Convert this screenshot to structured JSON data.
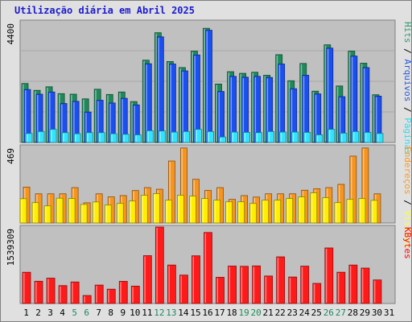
{
  "chart_data": {
    "type": "bar",
    "title": "Utilização diária em Abril 2025",
    "categories": [
      "1",
      "2",
      "3",
      "4",
      "5",
      "6",
      "7",
      "8",
      "9",
      "10",
      "11",
      "12",
      "13",
      "14",
      "15",
      "16",
      "17",
      "18",
      "19",
      "20",
      "21",
      "22",
      "23",
      "24",
      "25",
      "26",
      "27",
      "28",
      "29",
      "30",
      "31"
    ],
    "weekend_categories": [
      "5",
      "6",
      "12",
      "13",
      "19",
      "20",
      "26",
      "27"
    ],
    "panels": [
      {
        "name": "traffic",
        "ymax_label": "4400",
        "ylim": [
          0,
          4400
        ],
        "right_labels": [
          "Páginas",
          "Arquivos",
          "Hits"
        ],
        "right_colors": [
          "#33d9ef",
          "#2a59d9",
          "#2f9a6d"
        ],
        "series": [
          {
            "name": "Hits",
            "color": "#1e8a5c",
            "values": [
              2150,
              1900,
              2030,
              1780,
              1760,
              1590,
              1940,
              1750,
              1840,
              1490,
              3000,
              4000,
              2950,
              2730,
              3330,
              4160,
              2130,
              2580,
              2520,
              2560,
              2450,
              3200,
              2250,
              2880,
              1870,
              3560,
              2060,
              3330,
              2890,
              1740,
              0
            ]
          },
          {
            "name": "Arquivos",
            "color": "#1a4ff0",
            "values": [
              1930,
              1760,
              1840,
              1420,
              1500,
              1110,
              1540,
              1440,
              1610,
              1370,
              2870,
              3850,
              2860,
              2610,
              3190,
              4090,
              1860,
              2410,
              2380,
              2410,
              2370,
              2860,
              1960,
              2450,
              1770,
              3440,
              1670,
              3150,
              2730,
              1690,
              0
            ]
          },
          {
            "name": "Páginas",
            "color": "#30e4ff",
            "values": [
              330,
              400,
              480,
              360,
              320,
              360,
              360,
              320,
              300,
              280,
              430,
              420,
              380,
              400,
              480,
              400,
              200,
              380,
              370,
              360,
              400,
              380,
              380,
              370,
              280,
              480,
              340,
              400,
              370,
              330,
              0
            ]
          }
        ]
      },
      {
        "name": "visitors",
        "ymax_label": "469",
        "ylim": [
          0,
          469
        ],
        "right_labels": [
          "Visitas",
          "Endereços"
        ],
        "right_colors": [
          "#ffff33",
          "#f79b28"
        ],
        "series": [
          {
            "name": "Endereços",
            "color": "#f7941e",
            "values": [
              220,
              179,
              179,
              179,
              217,
              124,
              179,
              160,
              168,
              199,
              217,
              207,
              380,
              460,
              268,
              200,
              217,
              145,
              168,
              159,
              179,
              179,
              179,
              201,
              210,
              217,
              237,
              410,
              460,
              179,
              0
            ]
          },
          {
            "name": "Visitas",
            "color": "#ffee00",
            "values": [
              149,
              125,
              105,
              152,
              150,
              114,
              129,
              110,
              120,
              135,
              170,
              180,
              140,
              170,
              165,
              150,
              140,
              130,
              130,
              120,
              140,
              140,
              150,
              160,
              185,
              155,
              125,
              145,
              150,
              139,
              0
            ]
          }
        ]
      },
      {
        "name": "kbytes",
        "ymax_label": "1539309",
        "ylim": [
          0,
          1539309
        ],
        "right_labels": [
          "KBytes"
        ],
        "right_colors": [
          "#ff0000"
        ],
        "series": [
          {
            "name": "KBytes",
            "color": "#ff1a1a",
            "values": [
              628900,
              448200,
              509700,
              360100,
              433500,
              160800,
              370800,
              288400,
              446300,
              349800,
              962500,
              1539309,
              774200,
              571600,
              960400,
              1429000,
              527400,
              753500,
              748200,
              756500,
              553400,
              939000,
              533000,
              751500,
              404400,
              1117800,
              629600,
              774200,
              712600,
              474300,
              0
            ]
          }
        ]
      }
    ]
  }
}
